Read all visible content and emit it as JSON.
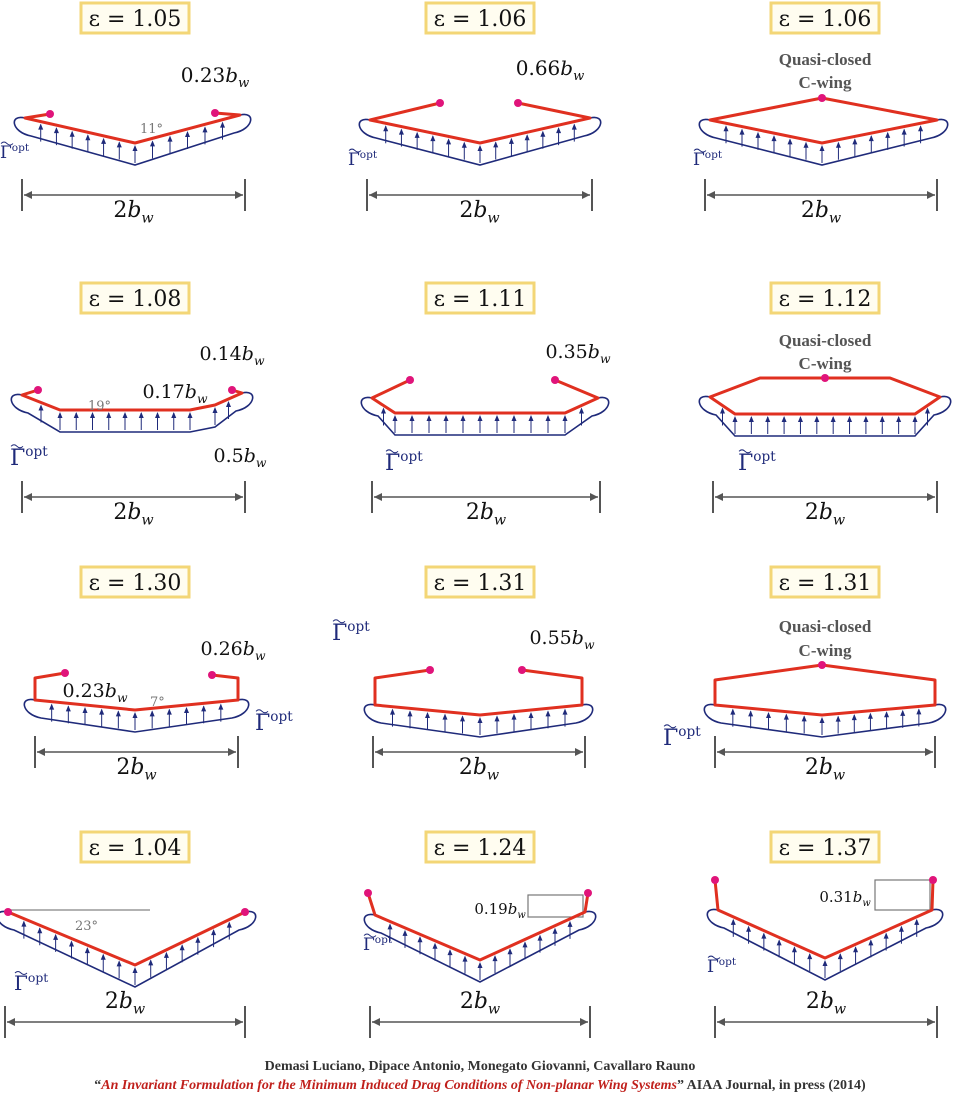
{
  "colors": {
    "wing": "#e03020",
    "distribution": "#1f2a7a",
    "tip_dot": "#e0147a",
    "label_border": "#f3d676",
    "label_fill": "#fffdf0",
    "dimension": "#555555"
  },
  "gamma_label": {
    "symbol": "Γ",
    "superscript": "opt"
  },
  "span_label": {
    "coef": "2",
    "var": "b",
    "sub": "w"
  },
  "panels": [
    {
      "epsilon": "ε = 1.05",
      "annotations": [
        {
          "coef": "0.23",
          "var": "b",
          "sub": "w"
        }
      ],
      "angle": "11°"
    },
    {
      "epsilon": "ε = 1.06",
      "annotations": [
        {
          "coef": "0.66",
          "var": "b",
          "sub": "w"
        }
      ]
    },
    {
      "epsilon": "ε = 1.06",
      "caption": [
        "Quasi-closed",
        "C-wing"
      ]
    },
    {
      "epsilon": "ε = 1.08",
      "annotations": [
        {
          "coef": "0.14",
          "var": "b",
          "sub": "w"
        },
        {
          "coef": "0.17",
          "var": "b",
          "sub": "w"
        },
        {
          "coef": "0.5",
          "var": "b",
          "sub": "w"
        }
      ],
      "angle": "19°"
    },
    {
      "epsilon": "ε = 1.11",
      "annotations": [
        {
          "coef": "0.35",
          "var": "b",
          "sub": "w"
        }
      ]
    },
    {
      "epsilon": "ε = 1.12",
      "caption": [
        "Quasi-closed",
        "C-wing"
      ]
    },
    {
      "epsilon": "ε = 1.30",
      "annotations": [
        {
          "coef": "0.23",
          "var": "b",
          "sub": "w"
        },
        {
          "coef": "0.26",
          "var": "b",
          "sub": "w"
        }
      ],
      "angle": "7°"
    },
    {
      "epsilon": "ε = 1.31",
      "annotations": [
        {
          "coef": "0.55",
          "var": "b",
          "sub": "w"
        }
      ]
    },
    {
      "epsilon": "ε = 1.31",
      "caption": [
        "Quasi-closed",
        "C-wing"
      ]
    },
    {
      "epsilon": "ε = 1.04",
      "angle": "23°"
    },
    {
      "epsilon": "ε = 1.24",
      "annotations": [
        {
          "coef": "0.19",
          "var": "b",
          "sub": "w"
        }
      ]
    },
    {
      "epsilon": "ε = 1.37",
      "annotations": [
        {
          "coef": "0.31",
          "var": "b",
          "sub": "w"
        }
      ]
    }
  ],
  "citation": {
    "authors": "Demasi Luciano, Dipace Antonio, Monegato Giovanni, Cavallaro Rauno",
    "open_quote": "“",
    "title": "An Invariant Formulation for the Minimum Induced Drag Conditions of Non-planar Wing Systems",
    "close_quote": "”",
    "journal": " AIAA Journal, in press (2014)"
  }
}
